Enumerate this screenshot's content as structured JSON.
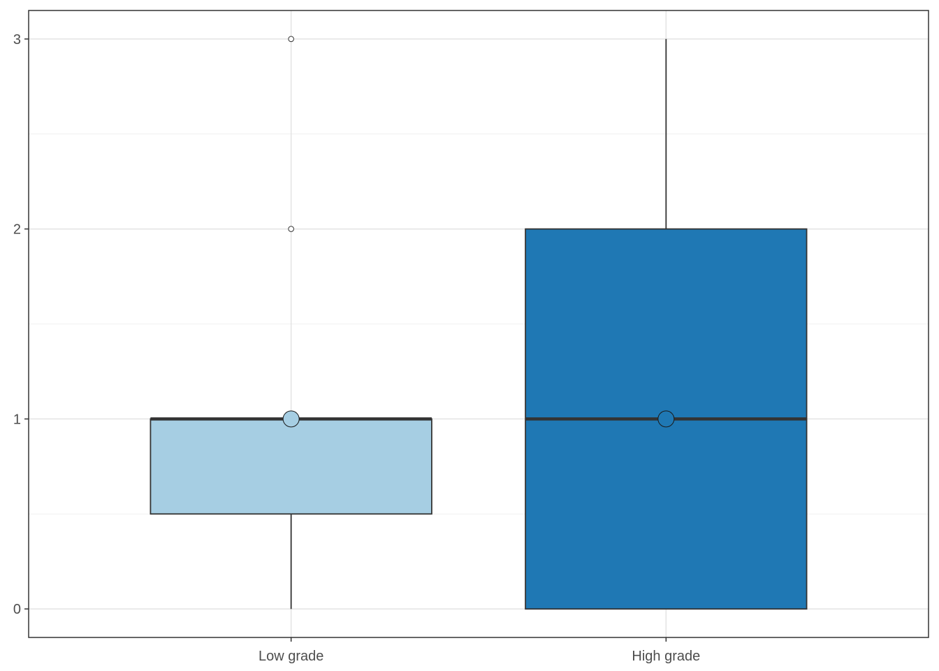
{
  "chart_data": {
    "type": "boxplot",
    "title": "",
    "xlabel": "",
    "ylabel": "",
    "categories": [
      "Low grade",
      "High grade"
    ],
    "ylim": [
      -0.15,
      3.15
    ],
    "yticks": [
      0,
      1,
      2,
      3
    ],
    "grid": true,
    "legend": "none",
    "boxes": [
      {
        "category": "Low grade",
        "fill": "#a6cee3",
        "min": 0,
        "q1": 0.5,
        "median": 1,
        "q3": 1,
        "max": 1,
        "mean": 1,
        "outliers": [
          2,
          3
        ]
      },
      {
        "category": "High grade",
        "fill": "#1f78b4",
        "min": 0,
        "q1": 0,
        "median": 1,
        "q3": 2,
        "max": 3,
        "mean": 1,
        "outliers": []
      }
    ]
  }
}
